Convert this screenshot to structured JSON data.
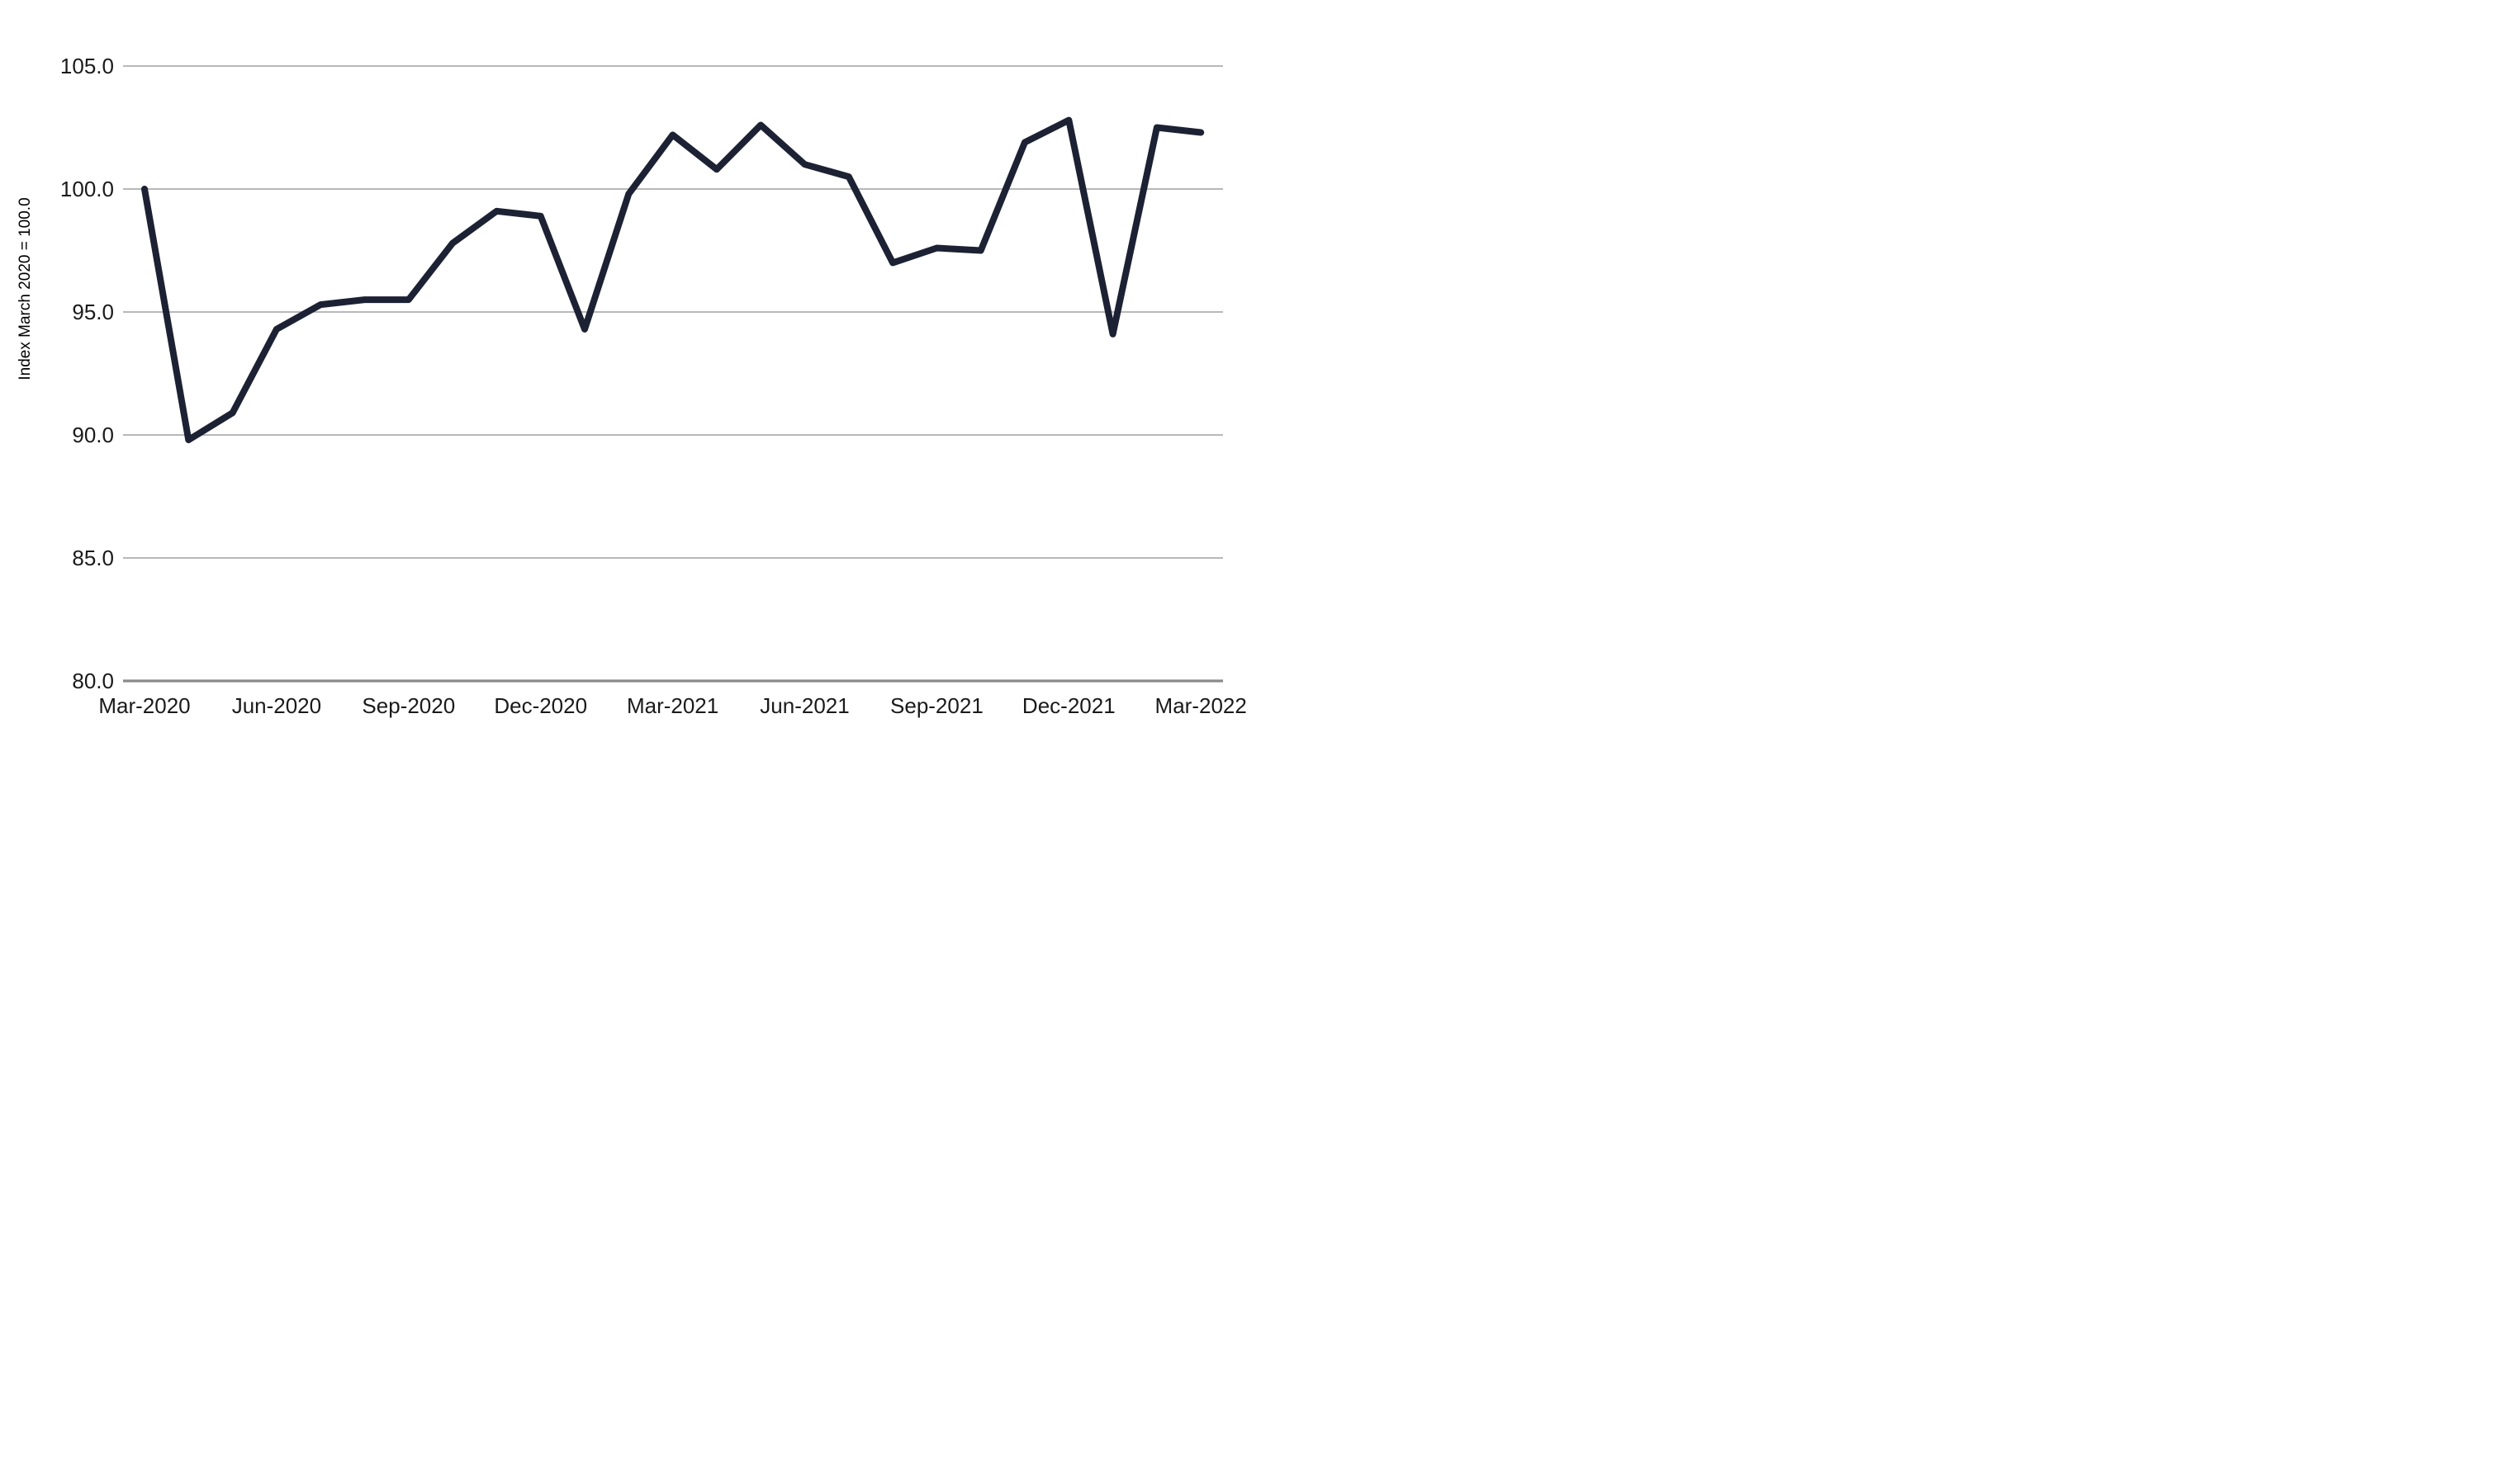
{
  "chart_data": {
    "type": "line",
    "title": "",
    "xlabel": "",
    "ylabel": "Index March 2020 = 100.0",
    "categories": [
      "Mar-2020",
      "Apr-2020",
      "May-2020",
      "Jun-2020",
      "Jul-2020",
      "Aug-2020",
      "Sep-2020",
      "Oct-2020",
      "Nov-2020",
      "Dec-2020",
      "Jan-2021",
      "Feb-2021",
      "Mar-2021",
      "Apr-2021",
      "May-2021",
      "Jun-2021",
      "Jul-2021",
      "Aug-2021",
      "Sep-2021",
      "Oct-2021",
      "Nov-2021",
      "Dec-2021",
      "Jan-2022",
      "Feb-2022",
      "Mar-2022"
    ],
    "values": [
      100.0,
      89.8,
      90.9,
      94.3,
      95.3,
      95.5,
      95.5,
      97.8,
      99.1,
      98.9,
      94.3,
      99.8,
      102.2,
      100.8,
      102.6,
      101.0,
      100.5,
      97.0,
      97.6,
      97.5,
      101.9,
      102.8,
      94.1,
      102.5,
      102.3
    ],
    "x_tick_labels": [
      "Mar-2020",
      "Jun-2020",
      "Sep-2020",
      "Dec-2020",
      "Mar-2021",
      "Jun-2021",
      "Sep-2021",
      "Dec-2021",
      "Mar-2022"
    ],
    "x_tick_every": 3,
    "y_ticks": [
      "105.0",
      "100.0",
      "95.0",
      "90.0",
      "85.0",
      "80.0"
    ],
    "y_tick_values": [
      105,
      100,
      95,
      90,
      85,
      80
    ],
    "ylim": [
      80,
      105
    ],
    "grid": "horizontal-only",
    "legend": "none",
    "colors": {
      "line": "#1c2133",
      "gridline": "#a0a0a0",
      "axis_line": "#8a8a8a",
      "tick_text": "#1a1a1a",
      "background": "#ffffff"
    }
  }
}
